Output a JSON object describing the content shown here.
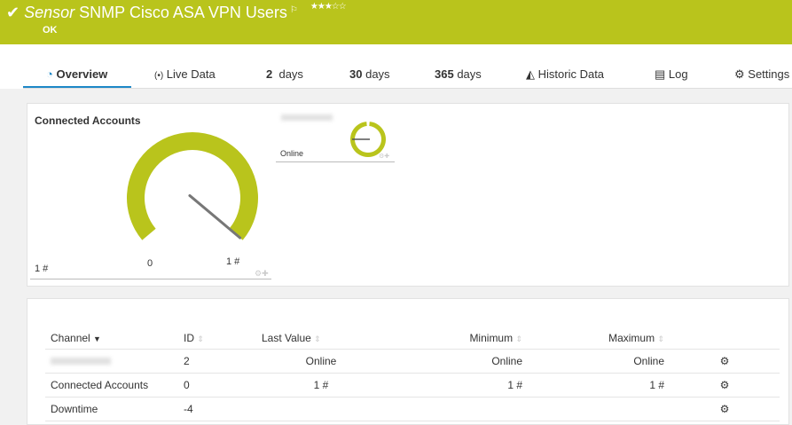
{
  "header": {
    "type_label": "Sensor",
    "title": "SNMP Cisco ASA VPN Users",
    "status": "OK",
    "rating": 3,
    "rating_max": 5,
    "color": "#b9c41c"
  },
  "tabs": [
    {
      "label": "Overview",
      "icon": "gauge-icon"
    },
    {
      "label": "Live Data",
      "icon": "broadcast-icon"
    },
    {
      "num": "2",
      "label": "days"
    },
    {
      "num": "30",
      "label": "days"
    },
    {
      "num": "365",
      "label": "days"
    },
    {
      "label": "Historic Data",
      "icon": "area-chart-icon"
    },
    {
      "label": "Log",
      "icon": "list-icon"
    },
    {
      "label": "Settings",
      "icon": "gear-icon"
    }
  ],
  "gauge_main": {
    "title": "Connected Accounts",
    "value_label": "1 #",
    "min_label": "0",
    "max_label": "1 #",
    "value": 1,
    "min": 0,
    "max": 1
  },
  "gauge_small": {
    "value_label": "Online"
  },
  "table": {
    "headers": [
      "Channel",
      "ID",
      "Last Value",
      "Minimum",
      "Maximum"
    ],
    "rows": [
      {
        "channel": "",
        "id": "2",
        "last": "Online",
        "min": "Online",
        "max": "Online"
      },
      {
        "channel": "Connected Accounts",
        "id": "0",
        "last": "1 #",
        "min": "1 #",
        "max": "1 #"
      },
      {
        "channel": "Downtime",
        "id": "-4",
        "last": "",
        "min": "",
        "max": ""
      }
    ]
  }
}
